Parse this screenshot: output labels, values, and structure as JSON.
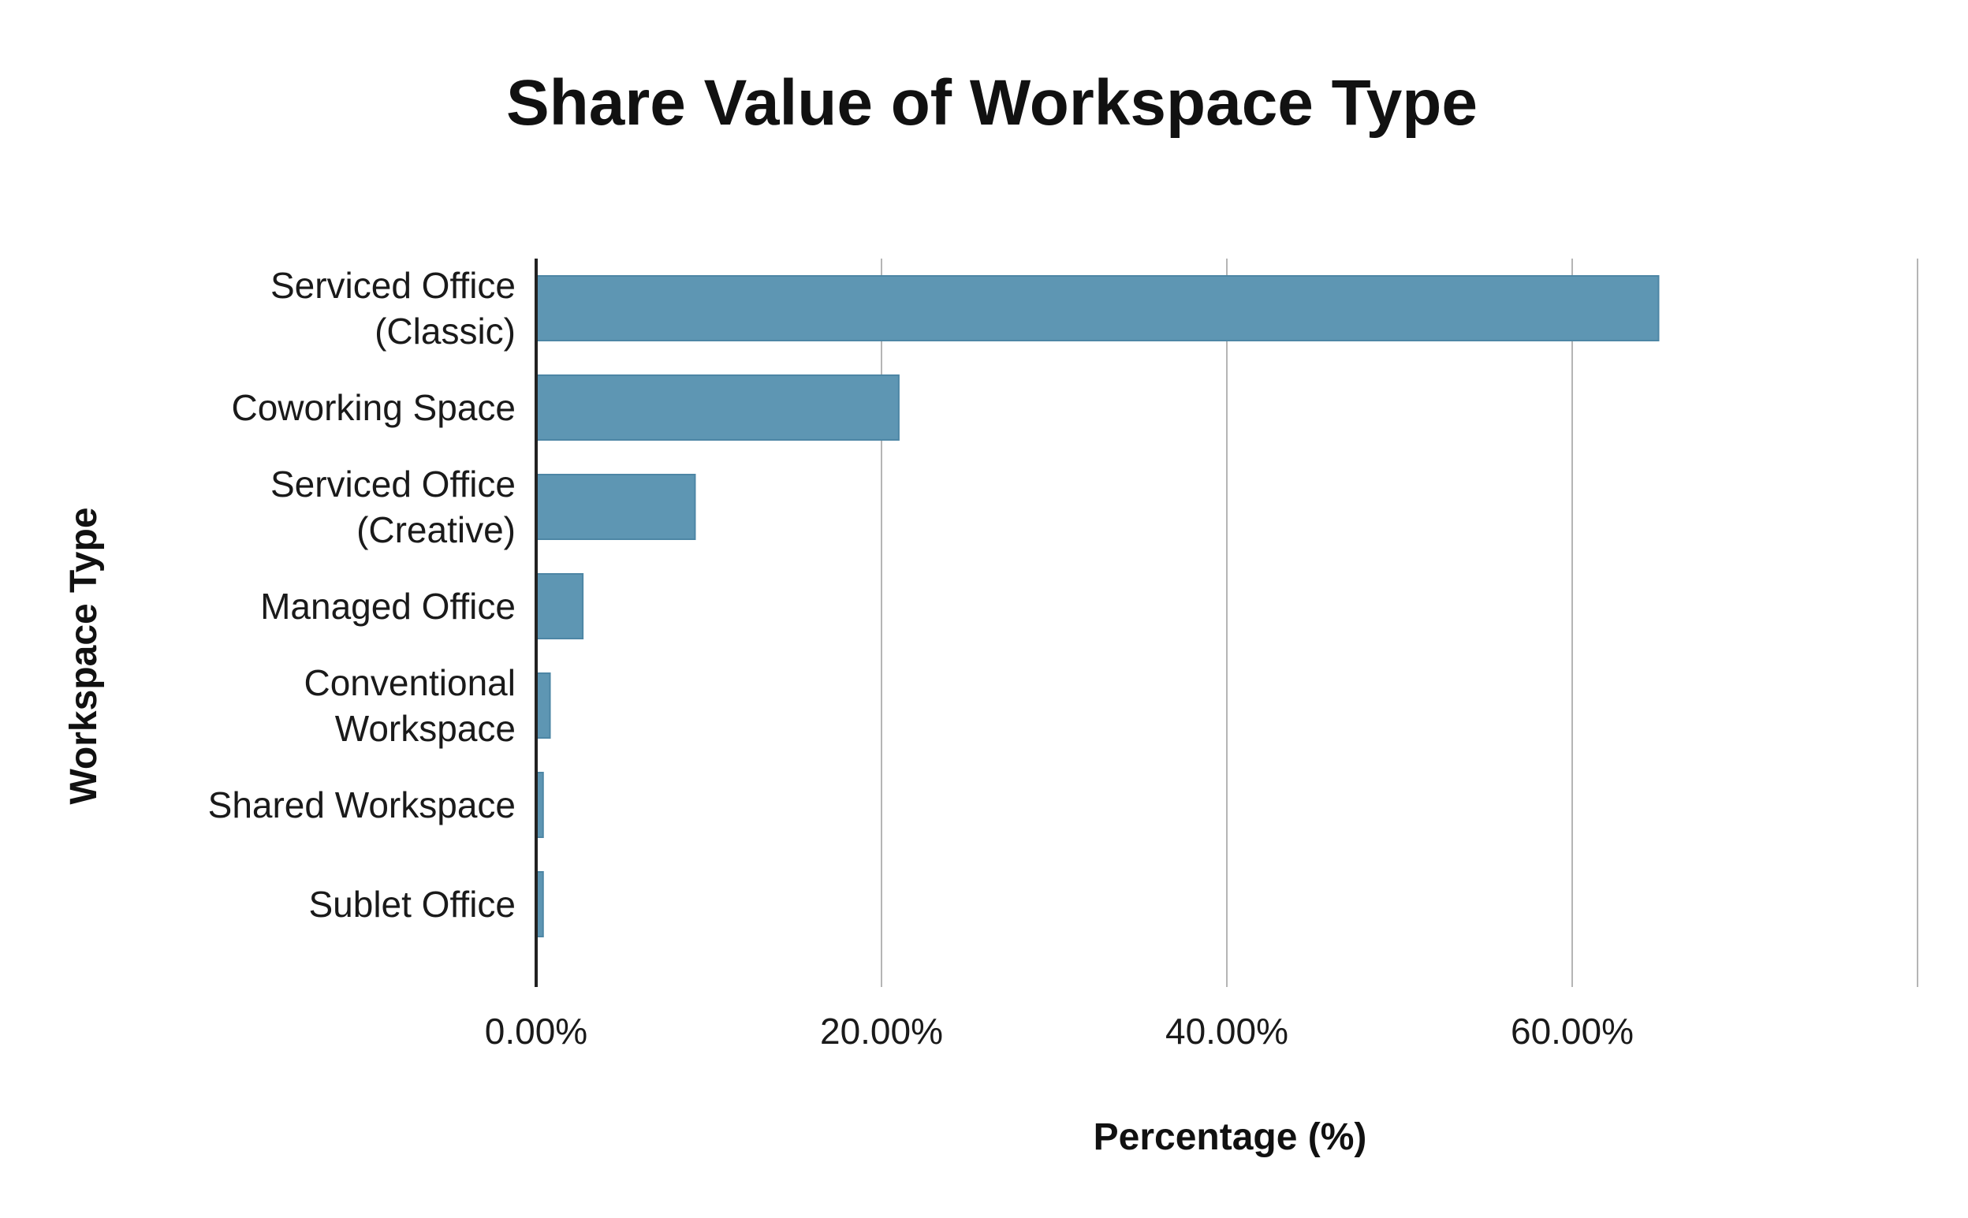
{
  "chart_data": {
    "type": "bar",
    "orientation": "horizontal",
    "title": "Share Value of Workspace Type",
    "xlabel": "Percentage (%)",
    "ylabel": "Workspace Type",
    "xlim": [
      0,
      80
    ],
    "xticks": [
      0,
      20,
      40,
      60
    ],
    "xtick_labels": [
      "0.00%",
      "20.00%",
      "40.00%",
      "60.00%"
    ],
    "grid": true,
    "legend": "none",
    "categories": [
      [
        "Serviced Office",
        "(Classic)"
      ],
      [
        "Coworking Space"
      ],
      [
        "Serviced Office",
        "(Creative)"
      ],
      [
        "Managed Office"
      ],
      [
        "Conventional",
        "Workspace"
      ],
      [
        "Shared Workspace"
      ],
      [
        "Sublet Office"
      ]
    ],
    "values": [
      65.0,
      21.0,
      9.2,
      2.7,
      0.8,
      0.4,
      0.4
    ],
    "bar_color": "#5e96b3"
  }
}
